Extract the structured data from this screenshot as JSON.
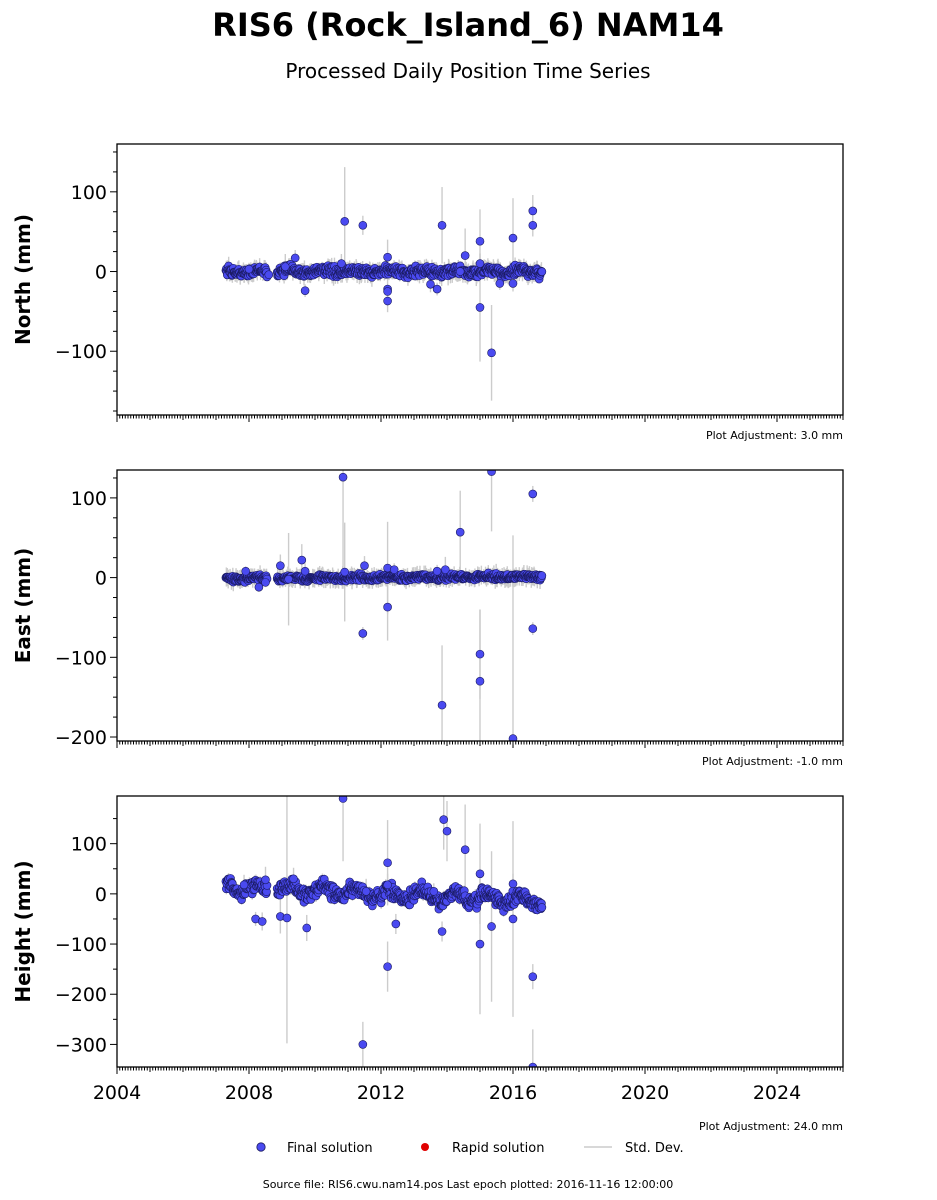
{
  "figure": {
    "title": "RIS6 (Rock_Island_6) NAM14",
    "subtitle": "Processed Daily Position Time Series",
    "footer": "Source file: RIS6.cwu.nam14.pos  Last epoch plotted: 2016-11-16 12:00:00"
  },
  "legend": {
    "final": "Final solution",
    "rapid": "Rapid solution",
    "std": "Std. Dev."
  },
  "colors": {
    "final": "#4a4af0",
    "final_edge": "#1a1a60",
    "rapid": "#e00000",
    "std": "#cccccc"
  },
  "chart_data": [
    {
      "type": "scatter",
      "ylabel": "North (mm)",
      "ylim": [
        -180,
        160
      ],
      "yticks": [
        -100,
        0,
        100
      ],
      "xlim": [
        2004,
        2026
      ],
      "xticks": [
        2004,
        2008,
        2012,
        2016,
        2020,
        2024
      ],
      "adjustment": "Plot Adjustment: 3.0 mm",
      "data_range": [
        2007.3,
        2016.88
      ],
      "noise": {
        "sd": 4,
        "trend": 0,
        "amp": 2
      },
      "outliers": [
        {
          "x": 2008.0,
          "y": 3,
          "e": 8
        },
        {
          "x": 2008.6,
          "y": -4,
          "e": 6
        },
        {
          "x": 2009.1,
          "y": 6,
          "e": 16
        },
        {
          "x": 2009.4,
          "y": 17,
          "e": 10
        },
        {
          "x": 2009.7,
          "y": -24,
          "e": 8
        },
        {
          "x": 2010.8,
          "y": 10,
          "e": 12
        },
        {
          "x": 2010.9,
          "y": 63,
          "e": 68
        },
        {
          "x": 2011.45,
          "y": 58,
          "e": 12
        },
        {
          "x": 2012.2,
          "y": 18,
          "e": 22
        },
        {
          "x": 2012.2,
          "y": -22,
          "e": 14
        },
        {
          "x": 2012.2,
          "y": -25,
          "e": 8
        },
        {
          "x": 2012.2,
          "y": -37,
          "e": 14
        },
        {
          "x": 2013.5,
          "y": -16,
          "e": 10
        },
        {
          "x": 2013.7,
          "y": -22,
          "e": 8
        },
        {
          "x": 2013.85,
          "y": 58,
          "e": 48
        },
        {
          "x": 2014.55,
          "y": 20,
          "e": 34
        },
        {
          "x": 2014.4,
          "y": 0,
          "e": 12
        },
        {
          "x": 2015.0,
          "y": 38,
          "e": 40
        },
        {
          "x": 2015.0,
          "y": 10,
          "e": 12
        },
        {
          "x": 2015.0,
          "y": -45,
          "e": 68
        },
        {
          "x": 2015.35,
          "y": -102,
          "e": 60
        },
        {
          "x": 2015.6,
          "y": -15,
          "e": 8
        },
        {
          "x": 2016.0,
          "y": 42,
          "e": 50
        },
        {
          "x": 2016.0,
          "y": -15,
          "e": 10
        },
        {
          "x": 2016.6,
          "y": 58,
          "e": 14
        },
        {
          "x": 2016.6,
          "y": 76,
          "e": 20
        }
      ]
    },
    {
      "type": "scatter",
      "ylabel": "East (mm)",
      "ylim": [
        -205,
        135
      ],
      "yticks": [
        -200,
        -100,
        0,
        100
      ],
      "xlim": [
        2004,
        2026
      ],
      "xticks": [
        2004,
        2008,
        2012,
        2016,
        2020,
        2024
      ],
      "adjustment": "Plot Adjustment: -1.0 mm",
      "data_range": [
        2007.3,
        2016.88
      ],
      "noise": {
        "sd": 2.5,
        "trend": 0.3,
        "amp": 1
      },
      "outliers": [
        {
          "x": 2007.9,
          "y": 8,
          "e": 6
        },
        {
          "x": 2008.3,
          "y": -12,
          "e": 6
        },
        {
          "x": 2008.5,
          "y": -6,
          "e": 6
        },
        {
          "x": 2008.95,
          "y": 15,
          "e": 14
        },
        {
          "x": 2009.2,
          "y": -2,
          "e": 58
        },
        {
          "x": 2009.6,
          "y": 22,
          "e": 20
        },
        {
          "x": 2009.7,
          "y": 8,
          "e": 10
        },
        {
          "x": 2010.85,
          "y": 126,
          "e": 140
        },
        {
          "x": 2010.9,
          "y": 7,
          "e": 62
        },
        {
          "x": 2011.45,
          "y": -70,
          "e": 8
        },
        {
          "x": 2011.5,
          "y": 15,
          "e": 12
        },
        {
          "x": 2012.2,
          "y": -37,
          "e": 42
        },
        {
          "x": 2012.2,
          "y": 12,
          "e": 58
        },
        {
          "x": 2012.4,
          "y": 10,
          "e": 8
        },
        {
          "x": 2013.7,
          "y": 8,
          "e": 8
        },
        {
          "x": 2013.85,
          "y": -160,
          "e": 75
        },
        {
          "x": 2013.95,
          "y": 10,
          "e": 16
        },
        {
          "x": 2014.4,
          "y": 57,
          "e": 52
        },
        {
          "x": 2015.0,
          "y": -130,
          "e": 90
        },
        {
          "x": 2015.0,
          "y": -96,
          "e": 56
        },
        {
          "x": 2015.35,
          "y": 133,
          "e": 75
        },
        {
          "x": 2016.0,
          "y": -202,
          "e": 255
        },
        {
          "x": 2016.6,
          "y": 105,
          "e": 10
        },
        {
          "x": 2016.6,
          "y": -64,
          "e": 8
        }
      ]
    },
    {
      "type": "scatter",
      "ylabel": "Height (mm)",
      "ylim": [
        -345,
        195
      ],
      "yticks": [
        -300,
        -200,
        -100,
        0,
        100
      ],
      "xlim": [
        2004,
        2026
      ],
      "xticks": [
        2004,
        2008,
        2012,
        2016,
        2020,
        2024
      ],
      "adjustment": "Plot Adjustment: 24.0 mm",
      "data_range": [
        2007.3,
        2016.88
      ],
      "noise": {
        "sd": 9,
        "trend": -3,
        "amp": 10
      },
      "outliers": [
        {
          "x": 2007.85,
          "y": 18,
          "e": 20
        },
        {
          "x": 2008.2,
          "y": -50,
          "e": 14
        },
        {
          "x": 2008.4,
          "y": -55,
          "e": 18
        },
        {
          "x": 2008.5,
          "y": 28,
          "e": 26
        },
        {
          "x": 2008.95,
          "y": -45,
          "e": 34
        },
        {
          "x": 2009.15,
          "y": -48,
          "e": 250
        },
        {
          "x": 2009.35,
          "y": 30,
          "e": 22
        },
        {
          "x": 2009.75,
          "y": -68,
          "e": 26
        },
        {
          "x": 2010.85,
          "y": 190,
          "e": 125
        },
        {
          "x": 2011.45,
          "y": -300,
          "e": 45
        },
        {
          "x": 2011.55,
          "y": 5,
          "e": 25
        },
        {
          "x": 2012.2,
          "y": 62,
          "e": 85
        },
        {
          "x": 2012.2,
          "y": 18,
          "e": 22
        },
        {
          "x": 2012.2,
          "y": -145,
          "e": 50
        },
        {
          "x": 2012.45,
          "y": -60,
          "e": 20
        },
        {
          "x": 2013.6,
          "y": 5,
          "e": 16
        },
        {
          "x": 2013.85,
          "y": -75,
          "e": 20
        },
        {
          "x": 2013.9,
          "y": 148,
          "e": 60
        },
        {
          "x": 2014.0,
          "y": 125,
          "e": 60
        },
        {
          "x": 2014.55,
          "y": 88,
          "e": 90
        },
        {
          "x": 2015.0,
          "y": -100,
          "e": 140
        },
        {
          "x": 2015.0,
          "y": 40,
          "e": 100
        },
        {
          "x": 2015.35,
          "y": -65,
          "e": 150
        },
        {
          "x": 2016.0,
          "y": 20,
          "e": 20
        },
        {
          "x": 2016.0,
          "y": -50,
          "e": 195
        },
        {
          "x": 2016.6,
          "y": -165,
          "e": 25
        },
        {
          "x": 2016.6,
          "y": -345,
          "e": 75
        }
      ]
    }
  ]
}
